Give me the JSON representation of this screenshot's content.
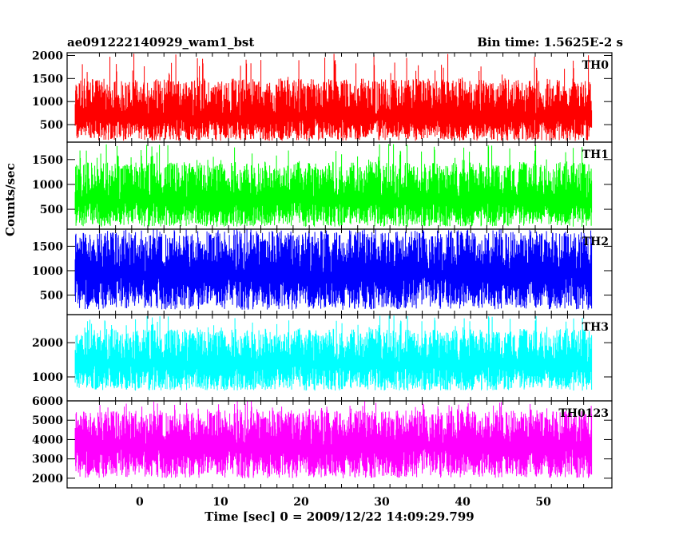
{
  "header": {
    "title": "ae091222140929_wam1_bst",
    "bin_time": "Bin time: 1.5625E-2 s",
    "xlabel": "Time [sec] 0 = 2009/12/22 14:09:29.799",
    "ylabel": "Counts/sec"
  },
  "chart_data": {
    "type": "line",
    "title": "ae091222140929_wam1_bst",
    "subtitle": "Bin time: 1.5625E-2 s",
    "xlabel": "Time [sec] 0 = 2009/12/22 14:09:29.799",
    "ylabel": "Counts/sec",
    "xlim": [
      -9,
      58.5
    ],
    "xticks": [
      0,
      10,
      20,
      30,
      40,
      50
    ],
    "x_start": -8,
    "x_end": 56,
    "bin": 0.015625,
    "grid": false,
    "panels": [
      {
        "name": "TH0",
        "color": "#ff0000",
        "ylim": [
          120,
          2060
        ],
        "yticks": [
          500,
          1000,
          1500,
          2000
        ],
        "mean": 700,
        "low": 150,
        "high": 1500,
        "max": 2060
      },
      {
        "name": "TH1",
        "color": "#00ff00",
        "ylim": [
          100,
          1850
        ],
        "yticks": [
          500,
          1000,
          1500
        ],
        "mean": 700,
        "low": 150,
        "high": 1450,
        "max": 1820
      },
      {
        "name": "TH2",
        "color": "#0000ff",
        "ylim": [
          100,
          1850
        ],
        "yticks": [
          500,
          1000,
          1500
        ],
        "mean": 950,
        "low": 200,
        "high": 1800,
        "max": 1850
      },
      {
        "name": "TH3",
        "color": "#00ffff",
        "ylim": [
          300,
          2820
        ],
        "yticks": [
          1000,
          2000
        ],
        "mean": 1400,
        "low": 600,
        "high": 2400,
        "max": 2800
      },
      {
        "name": "TH0123",
        "color": "#ff00ff",
        "ylim": [
          1500,
          6000
        ],
        "yticks": [
          2000,
          3000,
          4000,
          5000,
          6000
        ],
        "mean": 3700,
        "low": 2000,
        "high": 5500,
        "max": 6000
      }
    ]
  }
}
